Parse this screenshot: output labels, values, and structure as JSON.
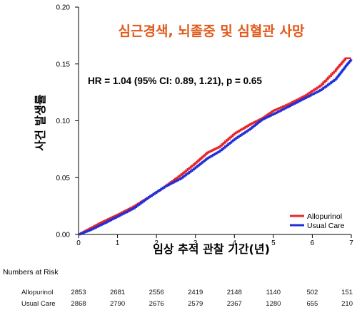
{
  "chart_data": {
    "type": "line",
    "title": "심근경색, 뇌졸중 및 심혈관 사망",
    "annotation": "HR = 1.04 (95% CI: 0.89, 1.21), p = 0.65",
    "xlabel": "임상 추적 관찰 기간(년)",
    "ylabel": "사건 발생률",
    "xlim": [
      0,
      7
    ],
    "ylim": [
      0,
      0.2
    ],
    "xticks": [
      "0",
      "1",
      "2",
      "3",
      "4",
      "5",
      "6",
      "7"
    ],
    "yticks": [
      "0.00",
      "0.05",
      "0.10",
      "0.15",
      "0.20"
    ],
    "grid": false,
    "legend_position": "bottom-right",
    "colors": {
      "Allopurinol": "#e8242a",
      "Usual Care": "#1f2fd8",
      "title": "#e05a1c"
    },
    "series": [
      {
        "name": "Allopurinol",
        "x": [
          0,
          0.3,
          0.6,
          1.0,
          1.4,
          1.8,
          2.2,
          2.6,
          3.0,
          3.3,
          3.6,
          4.0,
          4.4,
          4.7,
          5.0,
          5.4,
          5.8,
          6.2,
          6.6,
          6.85,
          7.0
        ],
        "y": [
          0,
          0.0055,
          0.011,
          0.0175,
          0.0245,
          0.033,
          0.042,
          0.052,
          0.063,
          0.072,
          0.077,
          0.089,
          0.097,
          0.102,
          0.109,
          0.115,
          0.122,
          0.131,
          0.145,
          0.155,
          0.155
        ]
      },
      {
        "name": "Usual Care",
        "x": [
          0,
          0.3,
          0.6,
          1.0,
          1.4,
          1.8,
          2.2,
          2.6,
          3.0,
          3.3,
          3.6,
          4.0,
          4.4,
          4.7,
          5.0,
          5.4,
          5.8,
          6.2,
          6.6,
          6.85,
          7.0
        ],
        "y": [
          0,
          0.004,
          0.009,
          0.016,
          0.023,
          0.033,
          0.042,
          0.049,
          0.059,
          0.067,
          0.073,
          0.084,
          0.093,
          0.101,
          0.106,
          0.113,
          0.12,
          0.127,
          0.137,
          0.148,
          0.154
        ]
      }
    ],
    "numbers_at_risk": {
      "label": "Numbers at Risk",
      "rows": [
        {
          "name": "Allopurinol",
          "values": [
            "2853",
            "2681",
            "2556",
            "2419",
            "2148",
            "1140",
            "502",
            "151"
          ]
        },
        {
          "name": "Usual Care",
          "values": [
            "2868",
            "2790",
            "2676",
            "2579",
            "2367",
            "1280",
            "655",
            "210"
          ]
        }
      ]
    }
  }
}
